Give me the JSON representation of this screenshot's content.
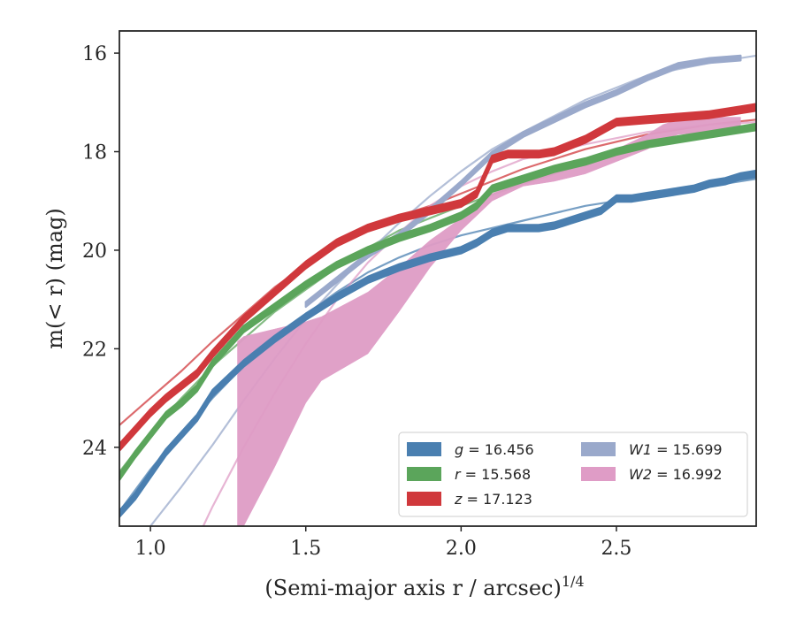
{
  "chart_data": {
    "type": "line",
    "xlabel": "(Semi-major axis r / arcsec)",
    "xlabel_sup": "1/4",
    "ylabel": "m(< r) (mag)",
    "xlim": [
      0.9,
      2.95
    ],
    "ylim": [
      25.6,
      15.55
    ],
    "y_inverted": true,
    "x_ticks": [
      1.0,
      1.5,
      2.0,
      2.5
    ],
    "x_tick_labels": [
      "1.0",
      "1.5",
      "2.0",
      "2.5"
    ],
    "y_ticks": [
      16,
      18,
      20,
      22,
      24
    ],
    "y_tick_labels": [
      "16",
      "18",
      "20",
      "22",
      "24"
    ],
    "grid": false,
    "legend": {
      "placement": "lower-right",
      "columns": 2,
      "entries": [
        {
          "name": "g = 16.456",
          "var": "g",
          "val": " = 16.456",
          "color": "#4a7fb0"
        },
        {
          "name": "r = 15.568",
          "var": "r",
          "val": " = 15.568",
          "color": "#5ba55b"
        },
        {
          "name": "z = 17.123",
          "var": "z",
          "val": " = 17.123",
          "color": "#d0383c"
        },
        {
          "name": "W1 = 15.699",
          "var": "W1",
          "val": " = 15.699",
          "color": "#9aa9cb"
        },
        {
          "name": "W2 = 16.992",
          "var": "W2",
          "val": " = 16.992",
          "color": "#df9cc6"
        }
      ]
    },
    "series": [
      {
        "name": "g = 16.456",
        "kind": "band",
        "color": "#4a7fb0",
        "x": [
          0.9,
          0.95,
          1.0,
          1.05,
          1.1,
          1.15,
          1.2,
          1.3,
          1.4,
          1.5,
          1.6,
          1.7,
          1.8,
          1.9,
          2.0,
          2.05,
          2.1,
          2.15,
          2.2,
          2.25,
          2.3,
          2.35,
          2.4,
          2.45,
          2.5,
          2.55,
          2.6,
          2.65,
          2.7,
          2.75,
          2.8,
          2.85,
          2.9,
          2.95
        ],
        "y": [
          25.35,
          25.0,
          24.55,
          24.1,
          23.75,
          23.4,
          22.9,
          22.3,
          21.8,
          21.35,
          20.95,
          20.6,
          20.35,
          20.15,
          20.0,
          19.85,
          19.65,
          19.55,
          19.55,
          19.55,
          19.5,
          19.4,
          19.3,
          19.2,
          18.95,
          18.95,
          18.9,
          18.85,
          18.8,
          18.75,
          18.65,
          18.6,
          18.5,
          18.45
        ],
        "thickness": 0.13
      },
      {
        "name": "r = 15.568",
        "kind": "band",
        "color": "#5ba55b",
        "x": [
          0.9,
          0.95,
          1.0,
          1.05,
          1.1,
          1.15,
          1.2,
          1.3,
          1.4,
          1.5,
          1.6,
          1.7,
          1.8,
          1.9,
          2.0,
          2.05,
          2.1,
          2.15,
          2.2,
          2.3,
          2.4,
          2.5,
          2.6,
          2.7,
          2.8,
          2.9,
          2.95
        ],
        "y": [
          24.6,
          24.15,
          23.75,
          23.35,
          23.1,
          22.8,
          22.3,
          21.6,
          21.15,
          20.7,
          20.3,
          20.0,
          19.75,
          19.55,
          19.3,
          19.1,
          18.75,
          18.65,
          18.55,
          18.35,
          18.2,
          18.0,
          17.85,
          17.75,
          17.65,
          17.55,
          17.5
        ],
        "thickness": 0.13
      },
      {
        "name": "z = 17.123",
        "kind": "band",
        "color": "#d0383c",
        "x": [
          0.9,
          0.95,
          1.0,
          1.05,
          1.1,
          1.15,
          1.2,
          1.3,
          1.4,
          1.5,
          1.6,
          1.7,
          1.8,
          1.9,
          2.0,
          2.05,
          2.1,
          2.15,
          2.2,
          2.25,
          2.3,
          2.4,
          2.5,
          2.6,
          2.7,
          2.8,
          2.9,
          2.95
        ],
        "y": [
          24.0,
          23.65,
          23.3,
          23.0,
          22.75,
          22.5,
          22.1,
          21.4,
          20.85,
          20.3,
          19.85,
          19.55,
          19.35,
          19.2,
          19.05,
          18.85,
          18.15,
          18.05,
          18.05,
          18.05,
          18.0,
          17.75,
          17.4,
          17.35,
          17.3,
          17.25,
          17.15,
          17.1
        ],
        "thickness": 0.14
      },
      {
        "name": "W1 = 15.699",
        "kind": "band",
        "color": "#9aa9cb",
        "x": [
          1.5,
          1.6,
          1.7,
          1.8,
          1.9,
          2.0,
          2.1,
          2.2,
          2.3,
          2.4,
          2.5,
          2.6,
          2.7,
          2.8,
          2.9
        ],
        "y": [
          21.1,
          20.6,
          20.1,
          19.7,
          19.2,
          18.65,
          18.05,
          17.65,
          17.35,
          17.05,
          16.8,
          16.5,
          16.25,
          16.15,
          16.1
        ],
        "thickness": 0.1
      },
      {
        "name": "W2 = 16.992",
        "kind": "band",
        "color": "#df9cc6",
        "x": [
          1.28,
          1.3,
          1.4,
          1.5,
          1.55,
          1.7,
          1.8,
          1.9,
          2.0,
          2.05,
          2.1,
          2.2,
          2.3,
          2.4,
          2.5,
          2.6,
          2.65,
          2.7,
          2.8,
          2.9
        ],
        "y_low": [
          21.85,
          21.75,
          21.6,
          21.45,
          21.35,
          20.85,
          20.35,
          19.8,
          19.35,
          19.1,
          18.85,
          18.6,
          18.4,
          18.2,
          17.95,
          17.65,
          17.45,
          17.35,
          17.3,
          17.3
        ],
        "y_high": [
          25.6,
          25.6,
          24.4,
          23.1,
          22.65,
          22.1,
          21.25,
          20.35,
          19.6,
          19.3,
          19.0,
          18.7,
          18.6,
          18.45,
          18.2,
          17.95,
          17.75,
          17.65,
          17.6,
          17.6
        ]
      }
    ],
    "fits": [
      {
        "name": "g fit",
        "color": "#4a7fb0",
        "x": [
          0.9,
          1.0,
          1.1,
          1.2,
          1.3,
          1.4,
          1.5,
          1.6,
          1.7,
          1.8,
          1.9,
          2.0,
          2.2,
          2.4,
          2.6,
          2.8,
          2.95
        ],
        "y": [
          25.3,
          24.45,
          23.7,
          23.0,
          22.35,
          21.8,
          21.3,
          20.85,
          20.45,
          20.15,
          19.9,
          19.7,
          19.4,
          19.1,
          18.9,
          18.7,
          18.55
        ]
      },
      {
        "name": "r fit",
        "color": "#5ba55b",
        "x": [
          0.9,
          1.0,
          1.1,
          1.2,
          1.3,
          1.4,
          1.5,
          1.6,
          1.7,
          1.8,
          1.9,
          2.0,
          2.2,
          2.4,
          2.6,
          2.8,
          2.95
        ],
        "y": [
          24.5,
          23.7,
          23.0,
          22.35,
          21.8,
          21.25,
          20.8,
          20.35,
          19.95,
          19.6,
          19.35,
          19.1,
          18.65,
          18.25,
          17.9,
          17.65,
          17.45
        ]
      },
      {
        "name": "z fit",
        "color": "#d0383c",
        "x": [
          0.9,
          1.0,
          1.1,
          1.2,
          1.3,
          1.4,
          1.5,
          1.6,
          1.7,
          1.8,
          1.9,
          2.0,
          2.2,
          2.4,
          2.6,
          2.8,
          2.95
        ],
        "y": [
          23.55,
          23.0,
          22.45,
          21.85,
          21.3,
          20.75,
          20.3,
          19.9,
          19.55,
          19.3,
          19.1,
          18.85,
          18.35,
          17.95,
          17.65,
          17.45,
          17.35
        ]
      },
      {
        "name": "W1 fit",
        "color": "#9aa9cb",
        "x": [
          1.0,
          1.1,
          1.2,
          1.3,
          1.4,
          1.5,
          1.6,
          1.7,
          1.8,
          1.9,
          2.0,
          2.1,
          2.2,
          2.4,
          2.6,
          2.8,
          2.95
        ],
        "y": [
          25.6,
          24.8,
          23.95,
          23.05,
          22.2,
          21.4,
          20.7,
          20.05,
          19.45,
          18.9,
          18.4,
          17.95,
          17.6,
          16.95,
          16.45,
          16.2,
          16.05
        ]
      },
      {
        "name": "W2 fit",
        "color": "#df9cc6",
        "x": [
          1.17,
          1.2,
          1.3,
          1.4,
          1.5,
          1.6,
          1.7,
          1.8,
          1.9,
          2.0,
          2.1,
          2.2,
          2.4,
          2.6,
          2.8,
          2.95
        ],
        "y": [
          25.6,
          25.2,
          24.0,
          22.9,
          21.9,
          21.0,
          20.25,
          19.65,
          19.1,
          18.7,
          18.4,
          18.15,
          17.85,
          17.6,
          17.45,
          17.4
        ]
      }
    ]
  }
}
